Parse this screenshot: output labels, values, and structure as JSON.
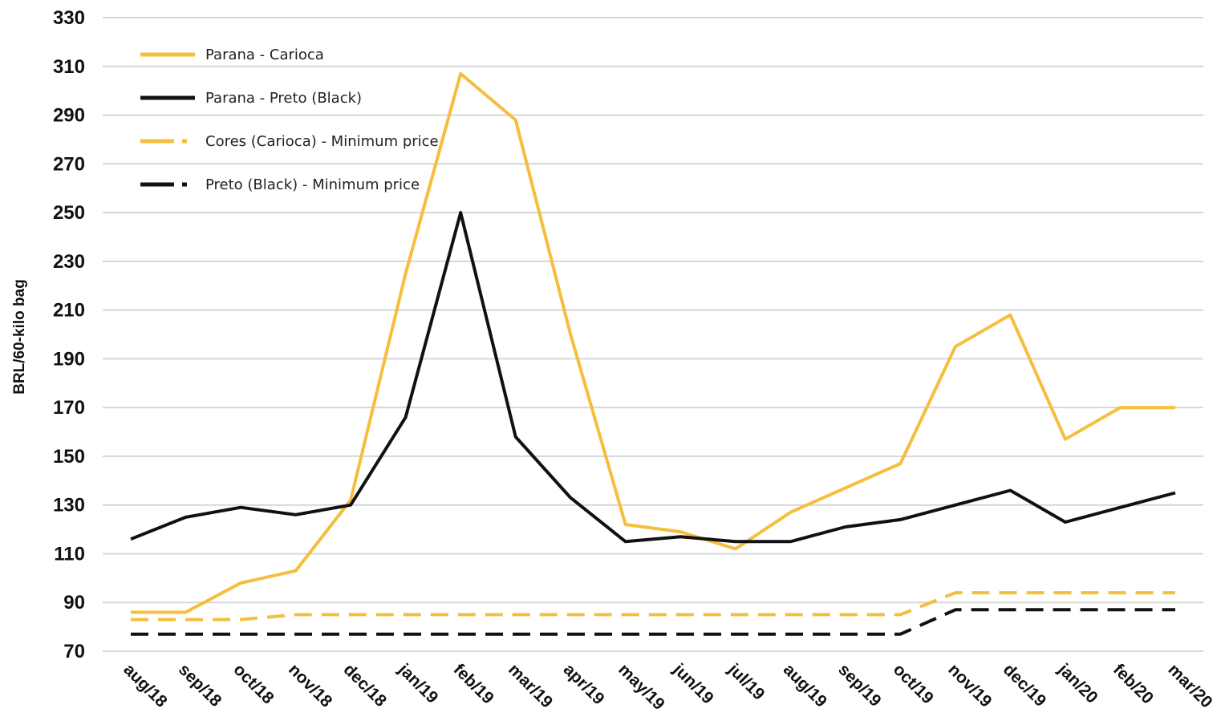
{
  "chart_data": {
    "type": "line",
    "title": "",
    "xlabel": "",
    "ylabel": "BRL/60-kilo bag",
    "ylim": [
      70,
      330
    ],
    "yticks": [
      70,
      90,
      110,
      130,
      150,
      170,
      190,
      210,
      230,
      250,
      270,
      290,
      310,
      330
    ],
    "grid": true,
    "legend_position": "top-left",
    "categories": [
      "aug/18",
      "sep/18",
      "oct/18",
      "nov/18",
      "dec/18",
      "jan/19",
      "feb/19",
      "mar/19",
      "apr/19",
      "may/19",
      "jun/19",
      "jul/19",
      "aug/19",
      "sep/19",
      "oct/19",
      "nov/19",
      "dec/19",
      "jan/20",
      "feb/20",
      "mar/20"
    ],
    "series": [
      {
        "name": "Parana - Carioca",
        "color": "#F5BE3C",
        "style": "solid",
        "values": [
          86,
          86,
          98,
          103,
          132,
          225,
          307,
          288,
          200,
          122,
          119,
          112,
          127,
          137,
          147,
          195,
          208,
          157,
          170,
          170
        ]
      },
      {
        "name": "Parana - Preto (Black)",
        "color": "#111111",
        "style": "solid",
        "values": [
          116,
          125,
          129,
          126,
          130,
          166,
          250,
          158,
          133,
          115,
          117,
          115,
          115,
          121,
          124,
          130,
          136,
          123,
          129,
          135
        ]
      },
      {
        "name": "Cores (Carioca) - Minimum price",
        "color": "#F5BE3C",
        "style": "dashed",
        "values": [
          83,
          83,
          83,
          85,
          85,
          85,
          85,
          85,
          85,
          85,
          85,
          85,
          85,
          85,
          85,
          94,
          94,
          94,
          94,
          94
        ]
      },
      {
        "name": "Preto (Black) - Minimum price",
        "color": "#111111",
        "style": "dashed",
        "values": [
          77,
          77,
          77,
          77,
          77,
          77,
          77,
          77,
          77,
          77,
          77,
          77,
          77,
          77,
          77,
          87,
          87,
          87,
          87,
          87
        ]
      }
    ]
  }
}
